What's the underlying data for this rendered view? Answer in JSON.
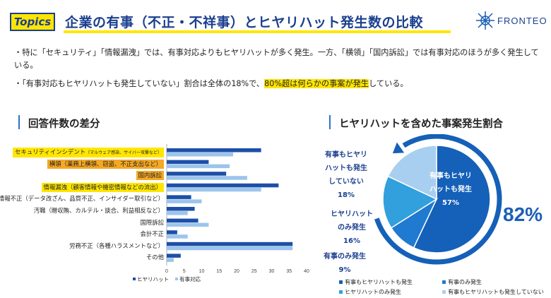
{
  "header": {
    "badge": "Topics",
    "title": "企業の有事（不正・不祥事）とヒヤリハット発生数の比較",
    "logo_text": "FRONTEO"
  },
  "bullets": [
    {
      "pre": "・特に「セキュリティ」「情報漏洩」では、有事対応よりもヒヤリハットが多く発生。一方、「横領」「国内訴訟」では有事対応のほうが多く発生している。",
      "highlight": "",
      "post": ""
    },
    {
      "pre": "・「有事対応もヒヤリハットも発生していない」割合は全体の18%で、",
      "highlight": "80%超は何らかの事案が発生",
      "post": "している。"
    }
  ],
  "sections": {
    "left_title": "回答件数の差分",
    "right_title": "ヒヤリハットを含めた事案発生割合"
  },
  "colors": {
    "accent_yellow": "#ffe600",
    "accent_orange": "#f4a824",
    "navy": "#1b3f8f",
    "series_hiyari": "#1d4fa8",
    "series_yuji": "#9cc5ec",
    "pie_both": "#1560b8",
    "pie_yuji_only": "#1f7ad0",
    "pie_hiyari_only": "#32a0dc",
    "pie_neither": "#a9cff0"
  },
  "chart_data": [
    {
      "type": "bar",
      "orientation": "horizontal",
      "categories": [
        {
          "label": "セキュリティインシデント",
          "note": "（マルウェア感染、サイバー攻撃など）",
          "highlight": "yellow"
        },
        {
          "label": "横領（業務上横領、窃盗、不正支出など）",
          "note": "",
          "highlight": "orange"
        },
        {
          "label": "国内訴訟",
          "note": "",
          "highlight": "orange"
        },
        {
          "label": "情報漏洩（顧客情報や機密情報などの流出）",
          "note": "",
          "highlight": "yellow"
        },
        {
          "label": "情報不正（データ改ざん、品質不正、インサイダー取引など）",
          "note": "",
          "highlight": ""
        },
        {
          "label": "汚職（贈収賄、カルテル・談合、利益相反など）",
          "note": "",
          "highlight": ""
        },
        {
          "label": "国際訴訟",
          "note": "",
          "highlight": ""
        },
        {
          "label": "会計不正",
          "note": "",
          "highlight": ""
        },
        {
          "label": "労務不正（各種ハラスメントなど）",
          "note": "",
          "highlight": ""
        },
        {
          "label": "その他",
          "note": "",
          "highlight": ""
        }
      ],
      "series": [
        {
          "name": "ヒヤリハット",
          "values": [
            27,
            12,
            17,
            32,
            7,
            8,
            9,
            3,
            36,
            4
          ]
        },
        {
          "name": "有事対応",
          "values": [
            19,
            18,
            23,
            27,
            10,
            6,
            12,
            6,
            36,
            2
          ]
        }
      ],
      "x_ticks": [
        0,
        5,
        10,
        15,
        20,
        25,
        30,
        35,
        40
      ],
      "xlim": [
        0,
        40
      ],
      "legend_position": "bottom"
    },
    {
      "type": "pie",
      "slices": [
        {
          "name": "有事もヒヤリハットも発生",
          "value": 57
        },
        {
          "name": "有事のみ発生",
          "value": 9
        },
        {
          "name": "ヒヤリハットのみ発生",
          "value": 16
        },
        {
          "name": "有事もヒヤリハットも発生していない",
          "value": 18
        }
      ],
      "inside_labels": {
        "both": [
          "有事もヒヤリ",
          "ハットも発生",
          "57%"
        ]
      },
      "outside_labels": {
        "neither": [
          "有事もヒヤリ",
          "ハットも発生",
          "していない",
          "18%"
        ],
        "hiyari_only": [
          "ヒヤリハット",
          "のみ発生",
          "16%"
        ],
        "yuji_only": [
          "有事のみ発生",
          "9%"
        ]
      },
      "total_incident_pct": "82%",
      "legend_position": "bottom"
    }
  ]
}
